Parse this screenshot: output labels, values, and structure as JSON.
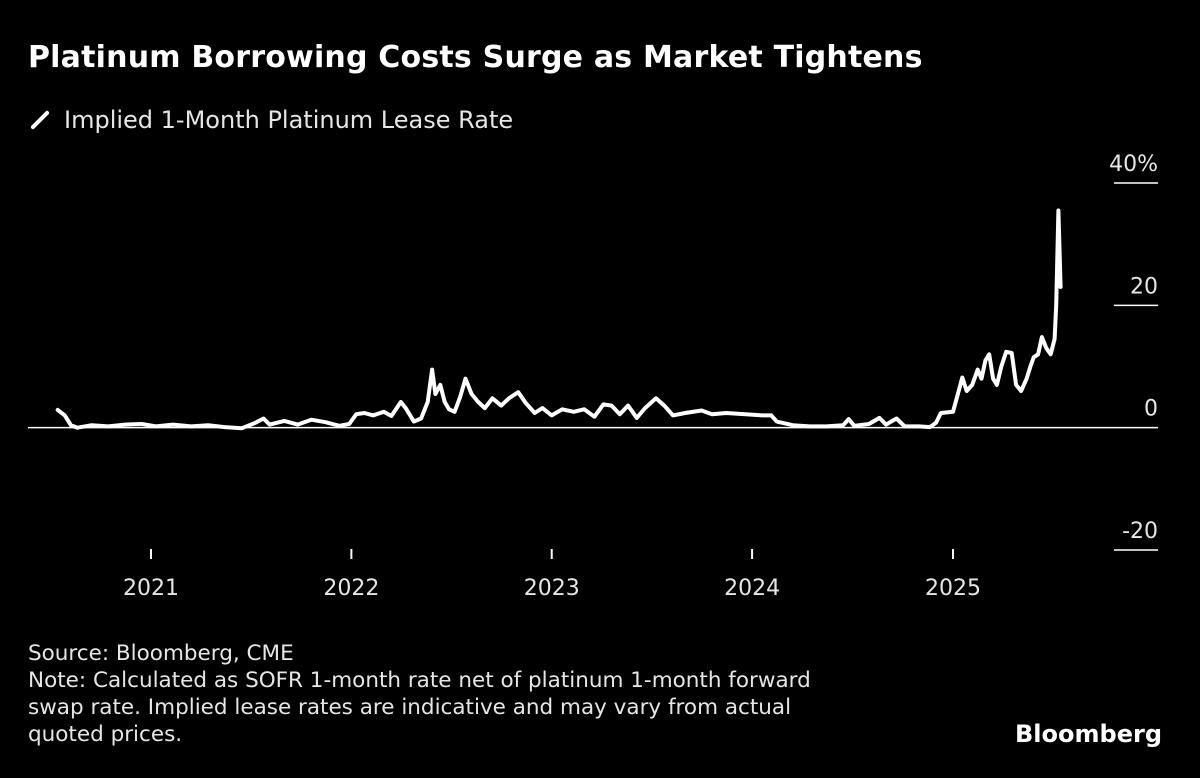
{
  "title": "Platinum Borrowing Costs Surge as Market Tightens",
  "source": "Source: Bloomberg, CME",
  "note": "Note: Calculated as SOFR 1-month rate net of platinum 1-month forward\nswap rate. Implied lease rates are indicative and may vary from actual\nquoted prices.",
  "brand": "Bloomberg",
  "colors": {
    "background": "#000000",
    "line": "#ffffff",
    "text": "#e6e6e6"
  },
  "chart_data": {
    "type": "line",
    "title": "Platinum Borrowing Costs Surge as Market Tightens",
    "xlabel": "",
    "ylabel": "",
    "ylim": [
      -20,
      40
    ],
    "xlim": [
      "2020-06-01",
      "2025-12-31"
    ],
    "y_ticks": [
      {
        "value": 40,
        "label": "40%"
      },
      {
        "value": 20,
        "label": "20"
      },
      {
        "value": 0,
        "label": "0"
      },
      {
        "value": -20,
        "label": "-20"
      }
    ],
    "x_ticks": [
      {
        "date": "2021-01-01",
        "label": "2021"
      },
      {
        "date": "2022-01-01",
        "label": "2022"
      },
      {
        "date": "2023-01-01",
        "label": "2023"
      },
      {
        "date": "2024-01-01",
        "label": "2024"
      },
      {
        "date": "2025-01-01",
        "label": "2025"
      }
    ],
    "legend_position": "top-left",
    "grid": false,
    "series": [
      {
        "name": "Implied 1-Month Platinum Lease Rate",
        "points": [
          [
            "2020-07-15",
            2.9
          ],
          [
            "2020-07-28",
            2.0
          ],
          [
            "2020-08-08",
            0.4
          ],
          [
            "2020-08-20",
            0.0
          ],
          [
            "2020-09-15",
            0.4
          ],
          [
            "2020-10-15",
            0.2
          ],
          [
            "2020-11-15",
            0.5
          ],
          [
            "2020-12-15",
            0.6
          ],
          [
            "2021-01-10",
            0.2
          ],
          [
            "2021-02-10",
            0.5
          ],
          [
            "2021-03-15",
            0.2
          ],
          [
            "2021-04-15",
            0.4
          ],
          [
            "2021-05-15",
            0.1
          ],
          [
            "2021-06-15",
            -0.1
          ],
          [
            "2021-07-10",
            0.8
          ],
          [
            "2021-07-25",
            1.5
          ],
          [
            "2021-08-05",
            0.5
          ],
          [
            "2021-09-01",
            1.1
          ],
          [
            "2021-09-25",
            0.5
          ],
          [
            "2021-10-20",
            1.3
          ],
          [
            "2021-11-15",
            0.9
          ],
          [
            "2021-12-10",
            0.3
          ],
          [
            "2021-12-28",
            0.6
          ],
          [
            "2022-01-10",
            2.2
          ],
          [
            "2022-01-25",
            2.4
          ],
          [
            "2022-02-10",
            2.0
          ],
          [
            "2022-03-01",
            2.6
          ],
          [
            "2022-03-15",
            1.9
          ],
          [
            "2022-04-01",
            4.2
          ],
          [
            "2022-04-10",
            3.2
          ],
          [
            "2022-04-25",
            1.0
          ],
          [
            "2022-05-08",
            1.5
          ],
          [
            "2022-05-20",
            4.2
          ],
          [
            "2022-05-28",
            9.5
          ],
          [
            "2022-06-03",
            5.5
          ],
          [
            "2022-06-12",
            7.0
          ],
          [
            "2022-06-20",
            4.2
          ],
          [
            "2022-06-28",
            3.0
          ],
          [
            "2022-07-08",
            2.6
          ],
          [
            "2022-07-18",
            5.0
          ],
          [
            "2022-07-28",
            8.0
          ],
          [
            "2022-08-08",
            5.5
          ],
          [
            "2022-08-20",
            4.2
          ],
          [
            "2022-09-01",
            3.2
          ],
          [
            "2022-09-15",
            4.8
          ],
          [
            "2022-10-01",
            3.6
          ],
          [
            "2022-10-15",
            4.8
          ],
          [
            "2022-11-01",
            5.8
          ],
          [
            "2022-11-15",
            4.0
          ],
          [
            "2022-12-01",
            2.4
          ],
          [
            "2022-12-15",
            3.2
          ],
          [
            "2023-01-01",
            2.0
          ],
          [
            "2023-01-20",
            3.0
          ],
          [
            "2023-02-10",
            2.6
          ],
          [
            "2023-03-01",
            3.0
          ],
          [
            "2023-03-20",
            1.8
          ],
          [
            "2023-04-05",
            3.8
          ],
          [
            "2023-04-20",
            3.6
          ],
          [
            "2023-05-05",
            2.2
          ],
          [
            "2023-05-20",
            3.6
          ],
          [
            "2023-06-05",
            1.6
          ],
          [
            "2023-06-20",
            3.2
          ],
          [
            "2023-07-10",
            4.8
          ],
          [
            "2023-07-25",
            3.6
          ],
          [
            "2023-08-10",
            2.0
          ],
          [
            "2023-09-01",
            2.4
          ],
          [
            "2023-10-01",
            2.8
          ],
          [
            "2023-10-20",
            2.2
          ],
          [
            "2023-11-15",
            2.4
          ],
          [
            "2023-12-20",
            2.2
          ],
          [
            "2024-01-20",
            2.0
          ],
          [
            "2024-02-05",
            2.0
          ],
          [
            "2024-02-15",
            1.0
          ],
          [
            "2024-03-15",
            0.4
          ],
          [
            "2024-04-15",
            0.2
          ],
          [
            "2024-05-15",
            0.2
          ],
          [
            "2024-06-15",
            0.4
          ],
          [
            "2024-06-25",
            1.4
          ],
          [
            "2024-07-05",
            0.3
          ],
          [
            "2024-08-01",
            0.6
          ],
          [
            "2024-08-20",
            1.6
          ],
          [
            "2024-09-01",
            0.5
          ],
          [
            "2024-09-20",
            1.5
          ],
          [
            "2024-10-05",
            0.2
          ],
          [
            "2024-11-01",
            0.2
          ],
          [
            "2024-11-20",
            0.1
          ],
          [
            "2024-12-01",
            0.8
          ],
          [
            "2024-12-10",
            2.4
          ],
          [
            "2025-01-01",
            2.6
          ],
          [
            "2025-01-10",
            5.5
          ],
          [
            "2025-01-18",
            8.2
          ],
          [
            "2025-01-26",
            6.0
          ],
          [
            "2025-02-05",
            7.0
          ],
          [
            "2025-02-15",
            9.5
          ],
          [
            "2025-02-22",
            8.0
          ],
          [
            "2025-03-01",
            11.0
          ],
          [
            "2025-03-08",
            12.0
          ],
          [
            "2025-03-15",
            8.0
          ],
          [
            "2025-03-22",
            7.0
          ],
          [
            "2025-03-30",
            10.0
          ],
          [
            "2025-04-08",
            12.4
          ],
          [
            "2025-04-18",
            12.2
          ],
          [
            "2025-04-26",
            7.0
          ],
          [
            "2025-05-05",
            6.0
          ],
          [
            "2025-05-15",
            8.0
          ],
          [
            "2025-05-22",
            10.0
          ],
          [
            "2025-05-28",
            11.5
          ],
          [
            "2025-06-05",
            12.0
          ],
          [
            "2025-06-12",
            14.8
          ],
          [
            "2025-06-20",
            13.0
          ],
          [
            "2025-06-28",
            12.0
          ],
          [
            "2025-07-05",
            14.5
          ],
          [
            "2025-07-08",
            20.0
          ],
          [
            "2025-07-12",
            35.5
          ],
          [
            "2025-07-16",
            23.0
          ]
        ]
      }
    ]
  }
}
